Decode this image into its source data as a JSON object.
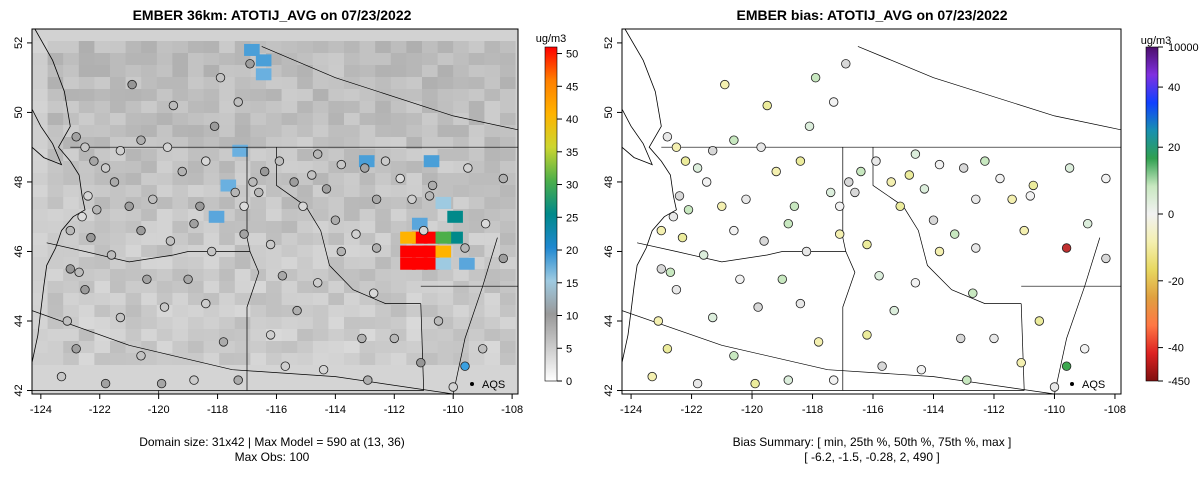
{
  "chart_data": [
    {
      "type": "heatmap",
      "title": "EMBER 36km: ATOTIJ_AVG on 07/23/2022",
      "xticks": [
        "-124",
        "-122",
        "-120",
        "-118",
        "-116",
        "-114",
        "-112",
        "-110",
        "-108"
      ],
      "yticks": [
        "42",
        "44",
        "46",
        "48",
        "50",
        "52"
      ],
      "xlim": [
        -124.3,
        -107.8
      ],
      "ylim": [
        41.9,
        52.4
      ],
      "legend": {
        "unit": "ug/m3",
        "ticks": [
          "0",
          "5",
          "10",
          "15",
          "20",
          "25",
          "30",
          "35",
          "40",
          "45",
          "50"
        ],
        "range": [
          0,
          51
        ],
        "colors": [
          "#ffffff",
          "#cccccc",
          "#999999",
          "#9ecae1",
          "#1f88d0",
          "#00898a",
          "#4daf4a",
          "#ccd630",
          "#ffb300",
          "#ff7f00",
          "#ff0000"
        ]
      },
      "marker_label": "AQS",
      "caption": [
        "Domain size: 31x42 | Max Model = 590 at (13, 36)",
        "Max Obs: 100"
      ]
    },
    {
      "type": "scatter",
      "title": "EMBER bias: ATOTIJ_AVG on 07/23/2022",
      "xticks": [
        "-124",
        "-122",
        "-120",
        "-118",
        "-116",
        "-114",
        "-112",
        "-110",
        "-108"
      ],
      "yticks": [
        "42",
        "44",
        "46",
        "48",
        "50",
        "52"
      ],
      "xlim": [
        -124.3,
        -107.8
      ],
      "ylim": [
        41.9,
        52.4
      ],
      "legend": {
        "unit": "ug/m3",
        "ticks": [
          "10000",
          "40",
          "20",
          "0",
          "-20",
          "-40",
          "-450"
        ],
        "colors": [
          "#7f1010",
          "#dd2222",
          "#ff7744",
          "#e0a040",
          "#e8d860",
          "#f4f0b0",
          "#f2f2f2",
          "#c8e8c0",
          "#30a050",
          "#1890b0",
          "#1040ff",
          "#8030e0",
          "#4b0f6b"
        ]
      },
      "marker_label": "AQS",
      "caption": [
        "Bias Summary: [ min, 25th %, 50th %, 75th %, max ]",
        "[ -6.2,   -1.5,   -0.28,   2,   490 ]"
      ]
    }
  ]
}
